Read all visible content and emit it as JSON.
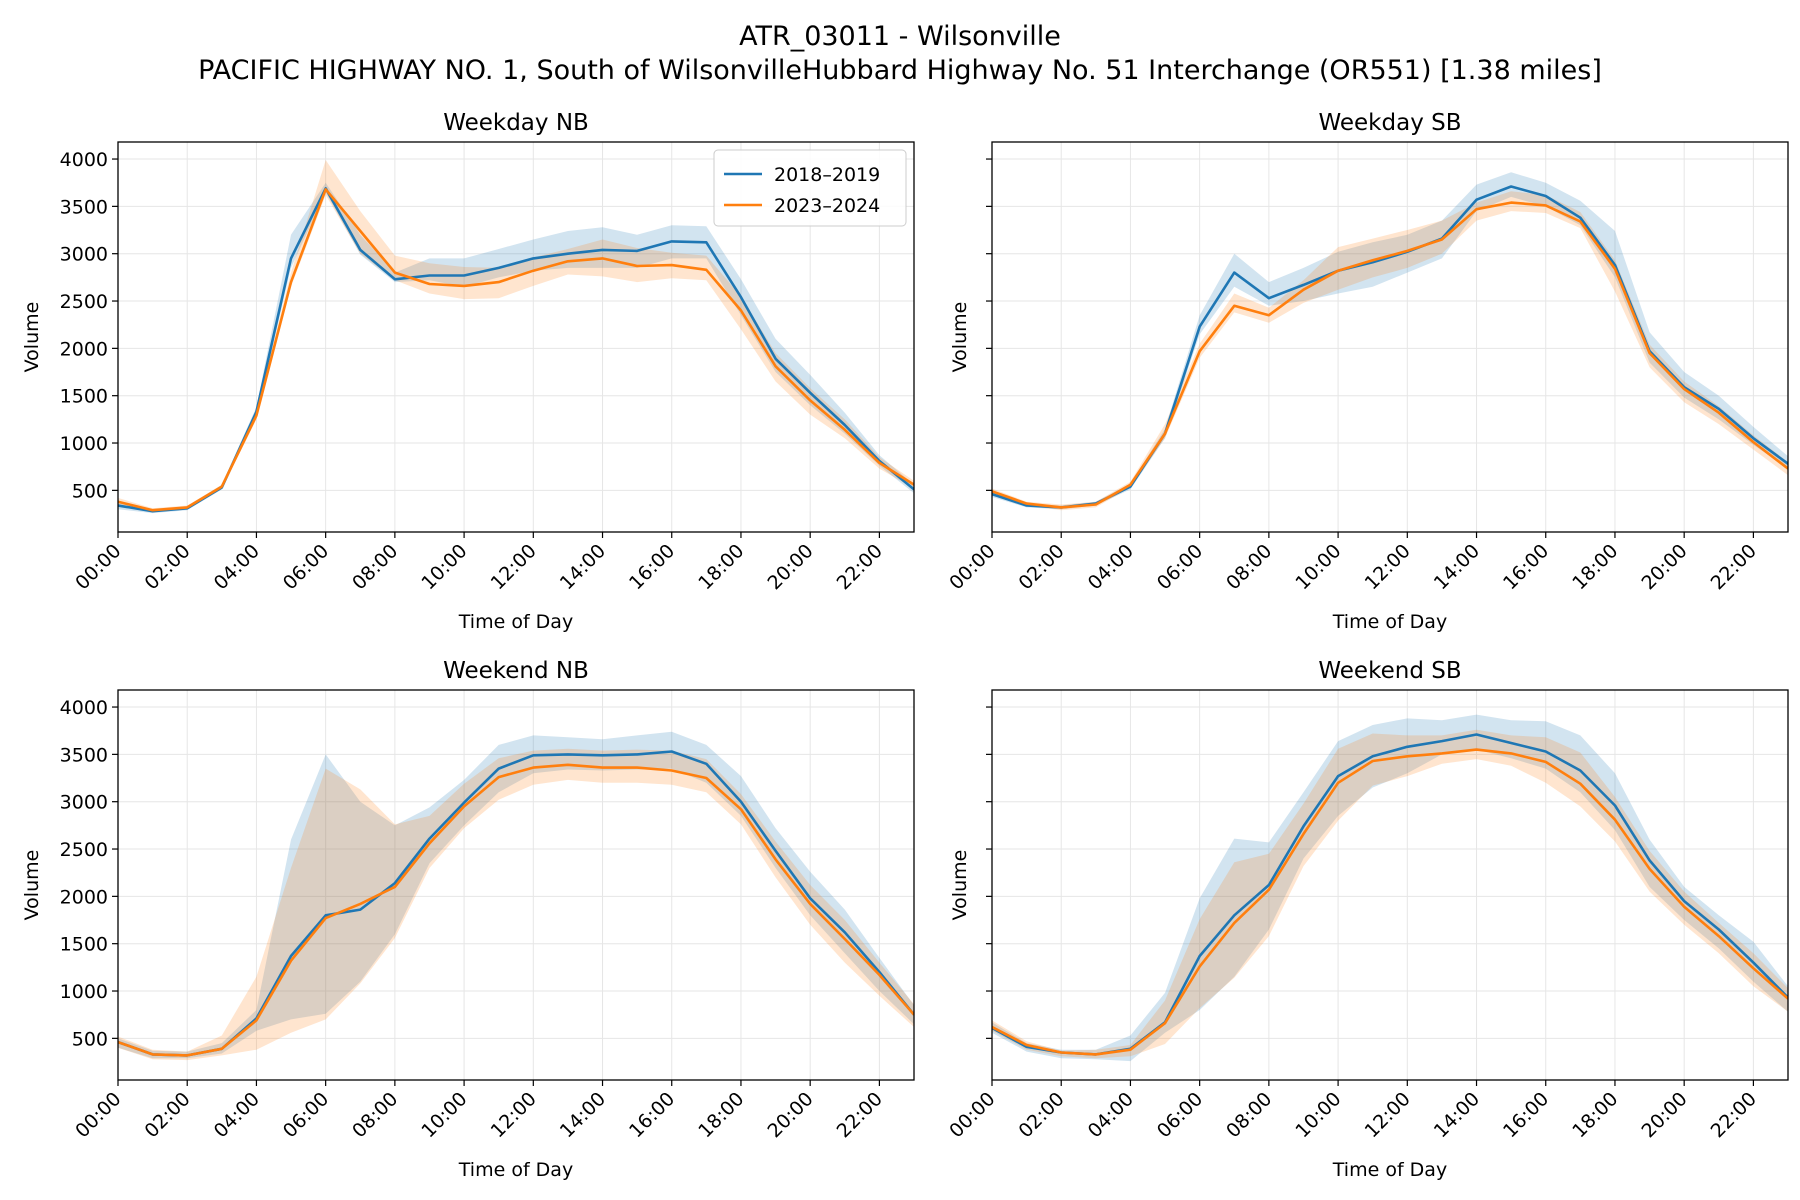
{
  "figure": {
    "title_line1": "ATR_03011 - Wilsonville",
    "title_line2": "PACIFIC HIGHWAY NO. 1, South of WilsonvilleHubbard Highway No. 51 Interchange (OR551) [1.38 miles]"
  },
  "colors": {
    "series_2018_2019": "#1f77b4",
    "series_2023_2024": "#ff7f0e",
    "grid": "#e6e6e6"
  },
  "chart_data": [
    {
      "type": "line",
      "title": "Weekday NB",
      "xlabel": "Time of Day",
      "ylabel": "Volume",
      "legend": "top-right",
      "grid": true,
      "xlim": [
        0,
        23
      ],
      "ylim": [
        60,
        4180
      ],
      "x_ticks": [
        "00:00",
        "02:00",
        "04:00",
        "06:00",
        "08:00",
        "10:00",
        "12:00",
        "14:00",
        "16:00",
        "18:00",
        "20:00",
        "22:00"
      ],
      "y_ticks": [
        500,
        1000,
        1500,
        2000,
        2500,
        3000,
        3500,
        4000
      ],
      "x": [
        0,
        1,
        2,
        3,
        4,
        5,
        6,
        7,
        8,
        9,
        10,
        11,
        12,
        13,
        14,
        15,
        16,
        17,
        18,
        19,
        20,
        21,
        22,
        23
      ],
      "series": [
        {
          "name": "2018–2019",
          "values": [
            340,
            280,
            310,
            530,
            1330,
            2950,
            3690,
            3040,
            2730,
            2770,
            2770,
            2850,
            2950,
            3000,
            3040,
            3030,
            3130,
            3120,
            2540,
            1890,
            1530,
            1190,
            810,
            510
          ],
          "low": [
            300,
            260,
            290,
            510,
            1280,
            2850,
            3650,
            2990,
            2700,
            2720,
            2650,
            2750,
            2820,
            2850,
            2850,
            2850,
            2950,
            2950,
            2350,
            1750,
            1400,
            1100,
            760,
            470
          ],
          "high": [
            380,
            300,
            330,
            560,
            1380,
            3200,
            3750,
            3200,
            2800,
            2950,
            2950,
            3050,
            3150,
            3240,
            3280,
            3200,
            3300,
            3290,
            2730,
            2100,
            1720,
            1320,
            870,
            560
          ]
        },
        {
          "name": "2023–2024",
          "values": [
            380,
            290,
            320,
            540,
            1290,
            2700,
            3680,
            3240,
            2800,
            2680,
            2660,
            2700,
            2820,
            2920,
            2950,
            2870,
            2880,
            2830,
            2400,
            1810,
            1450,
            1140,
            790,
            560
          ],
          "low": [
            340,
            270,
            300,
            520,
            1250,
            2650,
            3620,
            3000,
            2720,
            2580,
            2520,
            2530,
            2660,
            2780,
            2760,
            2700,
            2740,
            2720,
            2200,
            1650,
            1300,
            1050,
            730,
            520
          ],
          "high": [
            420,
            310,
            340,
            560,
            1330,
            2800,
            3990,
            3450,
            2980,
            2900,
            2860,
            2850,
            2960,
            3050,
            3150,
            3060,
            3010,
            2980,
            2550,
            1950,
            1580,
            1250,
            850,
            600
          ]
        }
      ]
    },
    {
      "type": "line",
      "title": "Weekday SB",
      "xlabel": "Time of Day",
      "ylabel": "Volume",
      "grid": true,
      "xlim": [
        0,
        23
      ],
      "ylim": [
        60,
        4180
      ],
      "x_ticks": [
        "00:00",
        "02:00",
        "04:00",
        "06:00",
        "08:00",
        "10:00",
        "12:00",
        "14:00",
        "16:00",
        "18:00",
        "20:00",
        "22:00"
      ],
      "y_ticks": [
        500,
        1000,
        1500,
        2000,
        2500,
        3000,
        3500,
        4000
      ],
      "x": [
        0,
        1,
        2,
        3,
        4,
        5,
        6,
        7,
        8,
        9,
        10,
        11,
        12,
        13,
        14,
        15,
        16,
        17,
        18,
        19,
        20,
        21,
        22,
        23
      ],
      "series": [
        {
          "name": "2018–2019",
          "values": [
            460,
            340,
            320,
            360,
            540,
            1100,
            2230,
            2800,
            2530,
            2670,
            2820,
            2910,
            3020,
            3160,
            3570,
            3710,
            3610,
            3380,
            2880,
            1970,
            1590,
            1360,
            1050,
            780
          ],
          "low": [
            430,
            320,
            300,
            340,
            510,
            1050,
            2150,
            2650,
            2450,
            2500,
            2580,
            2650,
            2800,
            2950,
            3450,
            3600,
            3500,
            3300,
            2750,
            1850,
            1480,
            1250,
            980,
            730
          ],
          "high": [
            500,
            360,
            340,
            380,
            570,
            1150,
            2350,
            3000,
            2700,
            2850,
            3020,
            3120,
            3200,
            3350,
            3730,
            3860,
            3750,
            3560,
            3240,
            2170,
            1750,
            1500,
            1170,
            860
          ]
        },
        {
          "name": "2023–2024",
          "values": [
            490,
            360,
            320,
            350,
            560,
            1100,
            1970,
            2450,
            2350,
            2620,
            2820,
            2930,
            3030,
            3150,
            3470,
            3540,
            3510,
            3340,
            2840,
            1950,
            1570,
            1320,
            1010,
            730
          ],
          "low": [
            460,
            340,
            290,
            320,
            530,
            1050,
            1900,
            2380,
            2270,
            2480,
            2620,
            2750,
            2850,
            3000,
            3350,
            3450,
            3430,
            3270,
            2600,
            1800,
            1430,
            1200,
            930,
            660
          ],
          "high": [
            520,
            380,
            350,
            380,
            590,
            1200,
            2050,
            2580,
            2430,
            2720,
            3070,
            3160,
            3250,
            3350,
            3540,
            3660,
            3620,
            3440,
            2930,
            2040,
            1650,
            1390,
            1080,
            800
          ]
        }
      ]
    },
    {
      "type": "line",
      "title": "Weekend NB",
      "xlabel": "Time of Day",
      "ylabel": "Volume",
      "grid": true,
      "xlim": [
        0,
        23
      ],
      "ylim": [
        60,
        4180
      ],
      "x_ticks": [
        "00:00",
        "02:00",
        "04:00",
        "06:00",
        "08:00",
        "10:00",
        "12:00",
        "14:00",
        "16:00",
        "18:00",
        "20:00",
        "22:00"
      ],
      "y_ticks": [
        500,
        1000,
        1500,
        2000,
        2500,
        3000,
        3500,
        4000
      ],
      "x": [
        0,
        1,
        2,
        3,
        4,
        5,
        6,
        7,
        8,
        9,
        10,
        11,
        12,
        13,
        14,
        15,
        16,
        17,
        18,
        19,
        20,
        21,
        22,
        23
      ],
      "series": [
        {
          "name": "2018–2019",
          "values": [
            460,
            330,
            320,
            390,
            710,
            1370,
            1800,
            1860,
            2140,
            2610,
            2990,
            3350,
            3490,
            3500,
            3490,
            3500,
            3530,
            3400,
            3000,
            2480,
            1980,
            1620,
            1200,
            750
          ],
          "low": [
            400,
            290,
            290,
            340,
            580,
            700,
            760,
            1100,
            1600,
            2350,
            2750,
            3100,
            3300,
            3340,
            3330,
            3340,
            3350,
            3200,
            2850,
            2300,
            1800,
            1400,
            1000,
            650
          ],
          "high": [
            500,
            370,
            360,
            450,
            800,
            2600,
            3500,
            3000,
            2750,
            2940,
            3230,
            3600,
            3700,
            3680,
            3660,
            3700,
            3740,
            3600,
            3270,
            2720,
            2260,
            1860,
            1350,
            850
          ]
        },
        {
          "name": "2023–2024",
          "values": [
            460,
            330,
            320,
            390,
            690,
            1320,
            1770,
            1920,
            2100,
            2560,
            2950,
            3260,
            3360,
            3390,
            3360,
            3360,
            3330,
            3250,
            2920,
            2390,
            1920,
            1550,
            1170,
            750
          ],
          "low": [
            400,
            280,
            270,
            320,
            380,
            560,
            700,
            1080,
            1560,
            2300,
            2720,
            3020,
            3180,
            3230,
            3200,
            3200,
            3180,
            3100,
            2760,
            2200,
            1700,
            1300,
            950,
            620
          ],
          "high": [
            520,
            380,
            360,
            530,
            1150,
            2300,
            3350,
            3130,
            2760,
            2850,
            3190,
            3460,
            3540,
            3560,
            3540,
            3550,
            3540,
            3450,
            3080,
            2580,
            2120,
            1750,
            1300,
            860
          ]
        }
      ]
    },
    {
      "type": "line",
      "title": "Weekend SB",
      "xlabel": "Time of Day",
      "ylabel": "Volume",
      "grid": true,
      "xlim": [
        0,
        23
      ],
      "ylim": [
        60,
        4180
      ],
      "x_ticks": [
        "00:00",
        "02:00",
        "04:00",
        "06:00",
        "08:00",
        "10:00",
        "12:00",
        "14:00",
        "16:00",
        "18:00",
        "20:00",
        "22:00"
      ],
      "y_ticks": [
        500,
        1000,
        1500,
        2000,
        2500,
        3000,
        3500,
        4000
      ],
      "x": [
        0,
        1,
        2,
        3,
        4,
        5,
        6,
        7,
        8,
        9,
        10,
        11,
        12,
        13,
        14,
        15,
        16,
        17,
        18,
        19,
        20,
        21,
        22,
        23
      ],
      "series": [
        {
          "name": "2018–2019",
          "values": [
            610,
            410,
            350,
            330,
            390,
            670,
            1370,
            1800,
            2120,
            2740,
            3270,
            3480,
            3580,
            3640,
            3710,
            3620,
            3530,
            3330,
            2960,
            2380,
            1950,
            1650,
            1300,
            930
          ],
          "low": [
            560,
            360,
            290,
            280,
            260,
            560,
            800,
            1150,
            1650,
            2400,
            2850,
            3150,
            3300,
            3500,
            3550,
            3460,
            3350,
            3100,
            2700,
            2100,
            1750,
            1450,
            1100,
            780
          ],
          "high": [
            670,
            450,
            380,
            380,
            530,
            980,
            1980,
            2610,
            2570,
            3100,
            3640,
            3810,
            3880,
            3860,
            3920,
            3860,
            3850,
            3700,
            3300,
            2600,
            2100,
            1800,
            1520,
            1050
          ]
        },
        {
          "name": "2023–2024",
          "values": [
            620,
            430,
            350,
            330,
            380,
            660,
            1260,
            1720,
            2070,
            2660,
            3200,
            3430,
            3480,
            3510,
            3550,
            3510,
            3420,
            3190,
            2810,
            2290,
            1890,
            1580,
            1240,
            920
          ],
          "low": [
            580,
            380,
            310,
            290,
            310,
            440,
            820,
            1140,
            1580,
            2320,
            2800,
            3170,
            3270,
            3400,
            3450,
            3380,
            3200,
            2950,
            2580,
            2050,
            1700,
            1400,
            1050,
            780
          ],
          "high": [
            690,
            470,
            370,
            380,
            430,
            900,
            1760,
            2360,
            2450,
            2980,
            3560,
            3720,
            3700,
            3700,
            3760,
            3700,
            3680,
            3520,
            3050,
            2480,
            2050,
            1720,
            1400,
            1030
          ]
        }
      ]
    }
  ]
}
